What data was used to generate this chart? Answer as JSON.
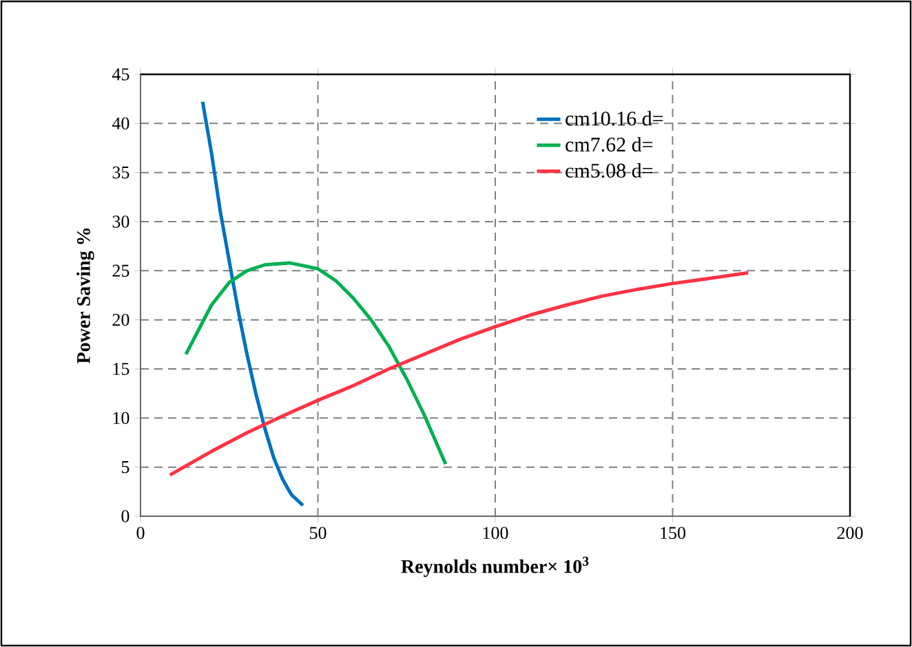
{
  "chart_data": {
    "type": "line",
    "xlabel": "Reynolds number× 10$^{3}$",
    "ylabel": "Power Saving %",
    "xlim": [
      0,
      200
    ],
    "ylim": [
      0,
      45
    ],
    "xticks": [
      0,
      50,
      100,
      150,
      200
    ],
    "yticks": [
      0,
      5,
      10,
      15,
      20,
      25,
      30,
      35,
      40,
      45
    ],
    "grid": true,
    "legend": "top right",
    "marker": "none",
    "line_style": "solid",
    "series": [
      {
        "name": "cm10.16 d=",
        "color": "#0070c0",
        "x": [
          17.5,
          20,
          22.5,
          25,
          27.5,
          30,
          32.5,
          35,
          37.5,
          40,
          42.5,
          45.8
        ],
        "values": [
          42.2,
          37,
          31,
          26,
          21,
          16.5,
          12.5,
          9,
          6,
          3.8,
          2.2,
          1.1
        ]
      },
      {
        "name": "cm7.62 d=",
        "color": "#00b050",
        "x": [
          12.8,
          20,
          25,
          30,
          35,
          42,
          50,
          55,
          60,
          65,
          70,
          75,
          80,
          86
        ],
        "values": [
          16.5,
          21.5,
          23.8,
          25,
          25.6,
          25.8,
          25.2,
          24,
          22.2,
          20,
          17.3,
          14,
          10.3,
          5.3
        ]
      },
      {
        "name": "cm5.08 d=",
        "color": "#ff3344",
        "x": [
          8.3,
          20,
          30,
          40,
          50,
          60,
          70,
          80,
          90,
          100,
          110,
          120,
          130,
          140,
          150,
          160,
          171.3
        ],
        "values": [
          4.2,
          6.6,
          8.5,
          10.2,
          11.8,
          13.3,
          15,
          16.5,
          18,
          19.3,
          20.5,
          21.5,
          22.4,
          23.1,
          23.7,
          24.2,
          24.8
        ]
      }
    ]
  }
}
